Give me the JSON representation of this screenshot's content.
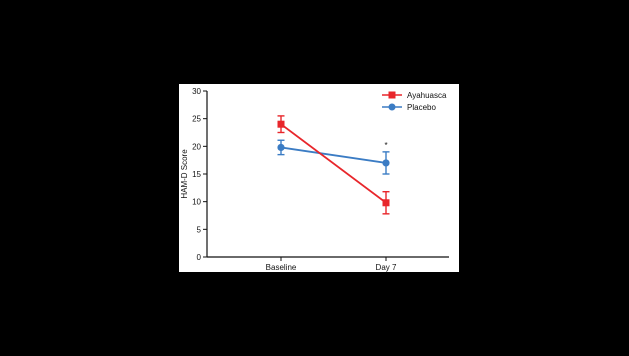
{
  "chart_data": {
    "type": "line",
    "categories": [
      "Baseline",
      "Day 7"
    ],
    "ylabel": "HAM-D Score",
    "ylim": [
      0,
      30
    ],
    "yticks": [
      0,
      5,
      10,
      15,
      20,
      25,
      30
    ],
    "legend_position": "top-right",
    "series": [
      {
        "name": "Ayahuasca",
        "color": "#e8262b",
        "marker": "square",
        "values": [
          24.0,
          9.8
        ],
        "error": [
          1.5,
          2.0
        ]
      },
      {
        "name": "Placebo",
        "color": "#3b7cc4",
        "marker": "circle",
        "values": [
          19.8,
          17.0
        ],
        "error": [
          1.3,
          2.0
        ]
      }
    ],
    "annotations": [
      {
        "text": "*",
        "category": "Day 7",
        "y": 20.2
      }
    ]
  }
}
